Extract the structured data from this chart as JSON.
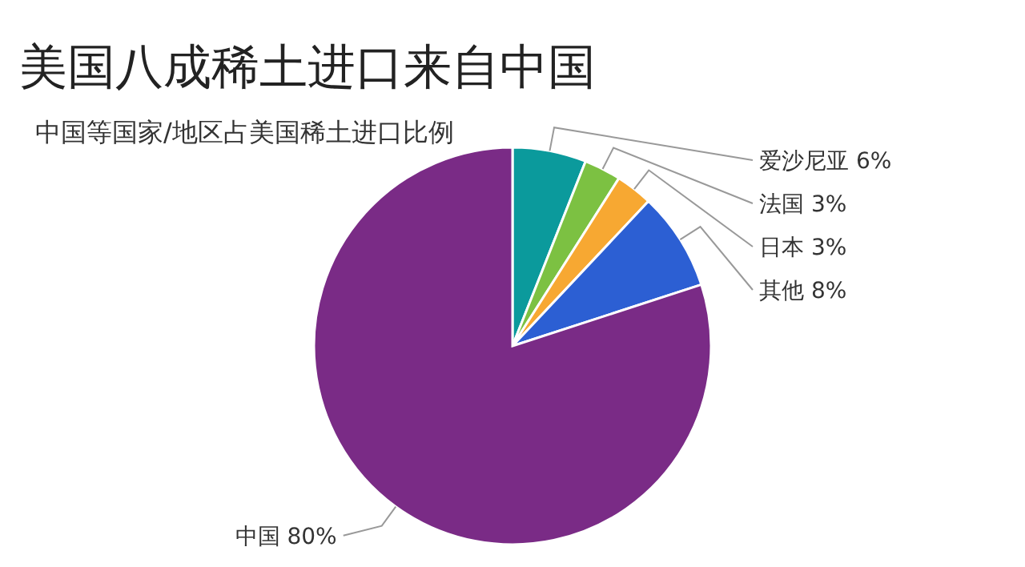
{
  "chart_data": {
    "type": "pie",
    "title": "美国八成稀土进口来自中国",
    "subtitle": "中国等国家/地区占美国稀土进口比例",
    "categories": [
      "爱沙尼亚",
      "法国",
      "日本",
      "其他",
      "中国"
    ],
    "values": [
      6,
      3,
      3,
      8,
      80
    ],
    "value_labels": [
      "6%",
      "3%",
      "3%",
      "8%",
      "80%"
    ],
    "colors": [
      "#0b9a9c",
      "#7cc142",
      "#f7a832",
      "#2c5fd3",
      "#7a2b86"
    ],
    "legend": false
  }
}
